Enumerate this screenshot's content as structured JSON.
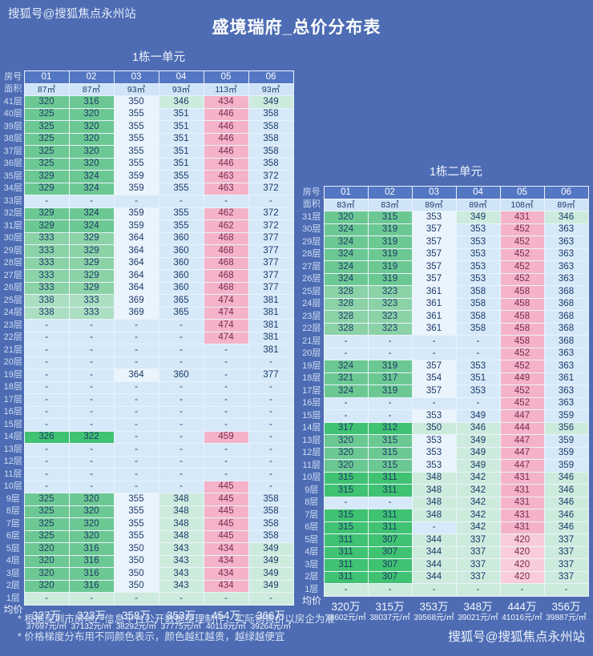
{
  "watermark_top": "搜狐号@搜狐焦点永州站",
  "watermark_bottom": "搜狐号@搜狐焦点永州站",
  "title": "盛境瑞府_总价分布表",
  "footnotes": [
    "* 根据深圳市房地产信息平台公开数据整理制作，实际销售价以房企为准",
    "* 价格梯度分布用不同颜色表示，颜色越红越贵，越绿越便宜"
  ],
  "colors": {
    "bg": "#4d6cb3",
    "header_bg": "#5377c2",
    "area_bg": "#cfe4f6",
    "border": "#e9f2fc",
    "g1": "#3fc271",
    "g2": "#6cc892",
    "g3": "#8bd2a7",
    "g4": "#aadfc2",
    "m": "#cdebdd",
    "b": "#d6e9f8",
    "w": "#eaf4fc",
    "p1": "#f4b3c8",
    "p2": "#f8ccd9",
    "cell_text": "#1d3a6a",
    "pink_text": "#7c2b52"
  },
  "chart_data": [
    {
      "type": "table",
      "title": "1栋一单元",
      "row_header_label": "房号",
      "area_label": "面积",
      "avg_label": "均价",
      "rooms": [
        "01",
        "02",
        "03",
        "04",
        "05",
        "06"
      ],
      "areas": [
        "87㎡",
        "87㎡",
        "93㎡",
        "93㎡",
        "113㎡",
        "93㎡"
      ],
      "floors": [
        "41层",
        "40层",
        "39层",
        "38层",
        "37层",
        "36层",
        "35层",
        "34层",
        "33层",
        "32层",
        "31层",
        "30层",
        "29层",
        "28层",
        "27层",
        "26层",
        "25层",
        "24层",
        "23层",
        "22层",
        "21层",
        "20层",
        "19层",
        "18层",
        "17层",
        "16层",
        "15层",
        "14层",
        "13层",
        "12层",
        "11层",
        "10层",
        "9层",
        "8层",
        "7层",
        "6层",
        "5层",
        "4层",
        "3层",
        "2层",
        "1层"
      ],
      "values": [
        [
          "320",
          "316",
          "350",
          "346",
          "434",
          "349"
        ],
        [
          "325",
          "320",
          "355",
          "351",
          "446",
          "358"
        ],
        [
          "325",
          "320",
          "355",
          "351",
          "446",
          "358"
        ],
        [
          "325",
          "320",
          "355",
          "351",
          "446",
          "358"
        ],
        [
          "325",
          "320",
          "355",
          "351",
          "446",
          "358"
        ],
        [
          "325",
          "320",
          "355",
          "351",
          "446",
          "358"
        ],
        [
          "329",
          "324",
          "359",
          "355",
          "463",
          "372"
        ],
        [
          "329",
          "324",
          "359",
          "355",
          "463",
          "372"
        ],
        [
          "-",
          "-",
          "-",
          "-",
          "-",
          "-"
        ],
        [
          "329",
          "324",
          "359",
          "355",
          "462",
          "372"
        ],
        [
          "329",
          "324",
          "359",
          "355",
          "462",
          "372"
        ],
        [
          "333",
          "329",
          "364",
          "360",
          "468",
          "377"
        ],
        [
          "333",
          "329",
          "364",
          "360",
          "468",
          "377"
        ],
        [
          "333",
          "329",
          "364",
          "360",
          "468",
          "377"
        ],
        [
          "333",
          "329",
          "364",
          "360",
          "468",
          "377"
        ],
        [
          "333",
          "329",
          "364",
          "360",
          "468",
          "377"
        ],
        [
          "338",
          "333",
          "369",
          "365",
          "474",
          "381"
        ],
        [
          "338",
          "333",
          "369",
          "365",
          "474",
          "381"
        ],
        [
          "-",
          "-",
          "-",
          "-",
          "474",
          "381"
        ],
        [
          "-",
          "-",
          "-",
          "-",
          "474",
          "381"
        ],
        [
          "-",
          "-",
          "-",
          "-",
          "-",
          "381"
        ],
        [
          "-",
          "-",
          "-",
          "-",
          "-",
          "-"
        ],
        [
          "-",
          "-",
          "364",
          "360",
          "-",
          "377"
        ],
        [
          "-",
          "-",
          "-",
          "-",
          "-",
          "-"
        ],
        [
          "-",
          "-",
          "-",
          "-",
          "-",
          "-"
        ],
        [
          "-",
          "-",
          "-",
          "-",
          "-",
          "-"
        ],
        [
          "-",
          "-",
          "-",
          "-",
          "-",
          "-"
        ],
        [
          "326",
          "322",
          "-",
          "-",
          "459",
          "-"
        ],
        [
          "-",
          "-",
          "-",
          "-",
          "-",
          "-"
        ],
        [
          "-",
          "-",
          "-",
          "-",
          "-",
          "-"
        ],
        [
          "-",
          "-",
          "-",
          "-",
          "-",
          "-"
        ],
        [
          "-",
          "-",
          "-",
          "-",
          "445",
          "-"
        ],
        [
          "325",
          "320",
          "355",
          "348",
          "445",
          "358"
        ],
        [
          "325",
          "320",
          "355",
          "348",
          "445",
          "358"
        ],
        [
          "325",
          "320",
          "355",
          "348",
          "445",
          "358"
        ],
        [
          "325",
          "320",
          "355",
          "348",
          "445",
          "358"
        ],
        [
          "320",
          "316",
          "350",
          "343",
          "434",
          "349"
        ],
        [
          "320",
          "316",
          "350",
          "343",
          "434",
          "349"
        ],
        [
          "320",
          "316",
          "350",
          "343",
          "434",
          "349"
        ],
        [
          "320",
          "316",
          "350",
          "343",
          "434",
          "349"
        ],
        [
          "-",
          "-",
          "-",
          "-",
          "-",
          "-"
        ]
      ],
      "cell_colors": [
        [
          "g2",
          "g2",
          "w",
          "m",
          "p1",
          "m"
        ],
        [
          "g2",
          "g2",
          "w",
          "b",
          "p1",
          "b"
        ],
        [
          "g2",
          "g2",
          "w",
          "b",
          "p1",
          "b"
        ],
        [
          "g2",
          "g2",
          "w",
          "b",
          "p1",
          "b"
        ],
        [
          "g2",
          "g2",
          "w",
          "b",
          "p1",
          "b"
        ],
        [
          "g2",
          "g2",
          "w",
          "b",
          "p1",
          "b"
        ],
        [
          "g2",
          "g2",
          "w",
          "b",
          "p1",
          "b"
        ],
        [
          "g2",
          "g2",
          "w",
          "b",
          "p1",
          "b"
        ],
        [
          "b",
          "b",
          "b",
          "b",
          "b",
          "b"
        ],
        [
          "g2",
          "g2",
          "w",
          "b",
          "p1",
          "b"
        ],
        [
          "g2",
          "g2",
          "w",
          "b",
          "p1",
          "b"
        ],
        [
          "g3",
          "g3",
          "w",
          "b",
          "p1",
          "b"
        ],
        [
          "g3",
          "g3",
          "w",
          "b",
          "p1",
          "b"
        ],
        [
          "g3",
          "g3",
          "w",
          "b",
          "p1",
          "b"
        ],
        [
          "g3",
          "g3",
          "w",
          "b",
          "p1",
          "b"
        ],
        [
          "g3",
          "g3",
          "w",
          "b",
          "p1",
          "b"
        ],
        [
          "g4",
          "g4",
          "w",
          "b",
          "p1",
          "b"
        ],
        [
          "g4",
          "g4",
          "w",
          "b",
          "p1",
          "b"
        ],
        [
          "b",
          "b",
          "b",
          "b",
          "p1",
          "b"
        ],
        [
          "b",
          "b",
          "b",
          "b",
          "p1",
          "b"
        ],
        [
          "b",
          "b",
          "b",
          "b",
          "b",
          "b"
        ],
        [
          "b",
          "b",
          "b",
          "b",
          "b",
          "b"
        ],
        [
          "b",
          "b",
          "w",
          "b",
          "b",
          "b"
        ],
        [
          "b",
          "b",
          "b",
          "b",
          "b",
          "b"
        ],
        [
          "b",
          "b",
          "b",
          "b",
          "b",
          "b"
        ],
        [
          "b",
          "b",
          "b",
          "b",
          "b",
          "b"
        ],
        [
          "b",
          "b",
          "b",
          "b",
          "b",
          "b"
        ],
        [
          "g1",
          "g1",
          "b",
          "b",
          "p1",
          "b"
        ],
        [
          "b",
          "b",
          "b",
          "b",
          "b",
          "b"
        ],
        [
          "b",
          "b",
          "b",
          "b",
          "b",
          "b"
        ],
        [
          "b",
          "b",
          "b",
          "b",
          "b",
          "b"
        ],
        [
          "b",
          "b",
          "b",
          "b",
          "p1",
          "b"
        ],
        [
          "g2",
          "g2",
          "w",
          "m",
          "p1",
          "b"
        ],
        [
          "g2",
          "g2",
          "w",
          "m",
          "p1",
          "b"
        ],
        [
          "g2",
          "g2",
          "w",
          "m",
          "p1",
          "b"
        ],
        [
          "g2",
          "g2",
          "w",
          "m",
          "p1",
          "b"
        ],
        [
          "g2",
          "g2",
          "w",
          "m",
          "p1",
          "m"
        ],
        [
          "g2",
          "g2",
          "w",
          "m",
          "p1",
          "m"
        ],
        [
          "g2",
          "g2",
          "w",
          "m",
          "p1",
          "m"
        ],
        [
          "g2",
          "g2",
          "w",
          "m",
          "p1",
          "m"
        ],
        [
          "m",
          "m",
          "m",
          "m",
          "m",
          "m"
        ]
      ],
      "avg_total": [
        "327万",
        "323万",
        "358万",
        "353万",
        "454万",
        "366万"
      ],
      "avg_unit": [
        "37697元/㎡",
        "37132元/㎡",
        "38292元/㎡",
        "37775元/㎡",
        "40118元/㎡",
        "39264元/㎡"
      ]
    },
    {
      "type": "table",
      "title": "1栋二单元",
      "row_header_label": "房号",
      "area_label": "面积",
      "avg_label": "均价",
      "rooms": [
        "01",
        "02",
        "03",
        "04",
        "05",
        "06"
      ],
      "areas": [
        "83㎡",
        "83㎡",
        "89㎡",
        "89㎡",
        "108㎡",
        "89㎡"
      ],
      "floors": [
        "31层",
        "30层",
        "29层",
        "28层",
        "27层",
        "26层",
        "25层",
        "24层",
        "23层",
        "22层",
        "21层",
        "20层",
        "19层",
        "18层",
        "17层",
        "16层",
        "15层",
        "14层",
        "13层",
        "12层",
        "11层",
        "10层",
        "9层",
        "8层",
        "7层",
        "6层",
        "5层",
        "4层",
        "3层",
        "2层",
        "1层"
      ],
      "values": [
        [
          "320",
          "315",
          "353",
          "349",
          "431",
          "346"
        ],
        [
          "324",
          "319",
          "357",
          "353",
          "452",
          "363"
        ],
        [
          "324",
          "319",
          "357",
          "353",
          "452",
          "363"
        ],
        [
          "324",
          "319",
          "357",
          "353",
          "452",
          "363"
        ],
        [
          "324",
          "319",
          "357",
          "353",
          "452",
          "363"
        ],
        [
          "324",
          "319",
          "357",
          "353",
          "452",
          "363"
        ],
        [
          "328",
          "323",
          "361",
          "358",
          "458",
          "368"
        ],
        [
          "328",
          "323",
          "361",
          "358",
          "458",
          "368"
        ],
        [
          "328",
          "323",
          "361",
          "358",
          "458",
          "368"
        ],
        [
          "328",
          "323",
          "361",
          "358",
          "458",
          "368"
        ],
        [
          "-",
          "-",
          "-",
          "-",
          "458",
          "368"
        ],
        [
          "-",
          "-",
          "-",
          "-",
          "452",
          "363"
        ],
        [
          "324",
          "319",
          "357",
          "353",
          "452",
          "363"
        ],
        [
          "321",
          "317",
          "354",
          "351",
          "449",
          "361"
        ],
        [
          "324",
          "319",
          "357",
          "353",
          "452",
          "363"
        ],
        [
          "-",
          "-",
          "-",
          "-",
          "452",
          "363"
        ],
        [
          "-",
          "-",
          "353",
          "349",
          "447",
          "359"
        ],
        [
          "317",
          "312",
          "350",
          "346",
          "444",
          "356"
        ],
        [
          "320",
          "315",
          "353",
          "349",
          "447",
          "359"
        ],
        [
          "320",
          "315",
          "353",
          "349",
          "447",
          "359"
        ],
        [
          "320",
          "315",
          "353",
          "349",
          "447",
          "359"
        ],
        [
          "315",
          "311",
          "348",
          "342",
          "431",
          "346"
        ],
        [
          "315",
          "311",
          "348",
          "342",
          "431",
          "346"
        ],
        [
          "-",
          "-",
          "348",
          "342",
          "431",
          "346"
        ],
        [
          "315",
          "311",
          "348",
          "342",
          "431",
          "346"
        ],
        [
          "315",
          "311",
          "-",
          "342",
          "431",
          "346"
        ],
        [
          "311",
          "307",
          "344",
          "337",
          "420",
          "337"
        ],
        [
          "311",
          "307",
          "344",
          "337",
          "420",
          "337"
        ],
        [
          "311",
          "307",
          "344",
          "337",
          "420",
          "337"
        ],
        [
          "311",
          "307",
          "344",
          "337",
          "420",
          "337"
        ],
        [
          "-",
          "-",
          "-",
          "-",
          "-",
          "-"
        ]
      ],
      "cell_colors": [
        [
          "g2",
          "g2",
          "w",
          "m",
          "p1",
          "m"
        ],
        [
          "g2",
          "g2",
          "w",
          "b",
          "p1",
          "b"
        ],
        [
          "g2",
          "g2",
          "w",
          "b",
          "p1",
          "b"
        ],
        [
          "g2",
          "g2",
          "w",
          "b",
          "p1",
          "b"
        ],
        [
          "g2",
          "g2",
          "w",
          "b",
          "p1",
          "b"
        ],
        [
          "g2",
          "g2",
          "w",
          "b",
          "p1",
          "b"
        ],
        [
          "g3",
          "g3",
          "w",
          "b",
          "p1",
          "b"
        ],
        [
          "g3",
          "g3",
          "w",
          "b",
          "p1",
          "b"
        ],
        [
          "g3",
          "g3",
          "w",
          "b",
          "p1",
          "b"
        ],
        [
          "g3",
          "g3",
          "w",
          "b",
          "p1",
          "b"
        ],
        [
          "b",
          "b",
          "b",
          "b",
          "p1",
          "b"
        ],
        [
          "b",
          "b",
          "b",
          "b",
          "p1",
          "b"
        ],
        [
          "g2",
          "g2",
          "w",
          "b",
          "p1",
          "b"
        ],
        [
          "g2",
          "g2",
          "w",
          "b",
          "p1",
          "b"
        ],
        [
          "g2",
          "g2",
          "w",
          "b",
          "p1",
          "b"
        ],
        [
          "b",
          "b",
          "b",
          "b",
          "p1",
          "b"
        ],
        [
          "b",
          "b",
          "w",
          "b",
          "p1",
          "b"
        ],
        [
          "g1",
          "g1",
          "m",
          "m",
          "p1",
          "m"
        ],
        [
          "g2",
          "g2",
          "w",
          "m",
          "p1",
          "b"
        ],
        [
          "g2",
          "g2",
          "w",
          "m",
          "p1",
          "b"
        ],
        [
          "g2",
          "g2",
          "w",
          "m",
          "p1",
          "b"
        ],
        [
          "g1",
          "g1",
          "m",
          "m",
          "p1",
          "m"
        ],
        [
          "g1",
          "g1",
          "m",
          "m",
          "p1",
          "m"
        ],
        [
          "b",
          "b",
          "m",
          "m",
          "p1",
          "m"
        ],
        [
          "g1",
          "g1",
          "m",
          "m",
          "p1",
          "m"
        ],
        [
          "g1",
          "g1",
          "b",
          "m",
          "p1",
          "m"
        ],
        [
          "g1",
          "g1",
          "m",
          "m",
          "p2",
          "m"
        ],
        [
          "g1",
          "g1",
          "m",
          "m",
          "p2",
          "m"
        ],
        [
          "g1",
          "g1",
          "m",
          "m",
          "p2",
          "m"
        ],
        [
          "g1",
          "g1",
          "m",
          "m",
          "p2",
          "m"
        ],
        [
          "m",
          "m",
          "m",
          "m",
          "m",
          "m"
        ]
      ],
      "avg_total": [
        "320万",
        "315万",
        "353万",
        "348万",
        "444万",
        "356万"
      ],
      "avg_unit": [
        "38602元/㎡",
        "38037元/㎡",
        "39568元/㎡",
        "39021元/㎡",
        "41016元/㎡",
        "39887元/㎡"
      ]
    }
  ]
}
